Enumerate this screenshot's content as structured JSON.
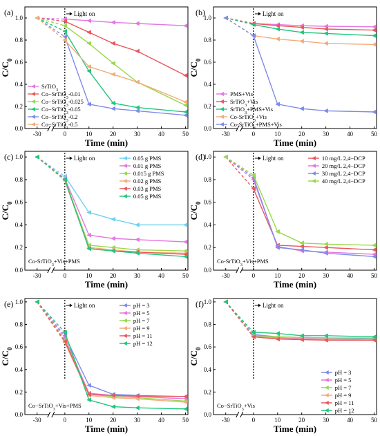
{
  "chart_data": [
    {
      "type": "line",
      "panel": "(a)",
      "xlabel": "Time (min)",
      "ylabel": "C/C0",
      "annotation": "Light on",
      "inset_label": "",
      "x": [
        -30,
        0,
        10,
        20,
        30,
        50
      ],
      "xticks": [
        "-30",
        "0",
        "10",
        "20",
        "30",
        "40",
        "50"
      ],
      "yticks": [
        "0.0",
        "0.2",
        "0.4",
        "0.6",
        "0.8",
        "1.0"
      ],
      "ylim": [
        0,
        1.1
      ],
      "legend_position": "bottom-left",
      "series": [
        {
          "name": "SrTiO3",
          "color": "#e377e0",
          "values": [
            1.0,
            0.99,
            0.975,
            0.96,
            0.95,
            0.93
          ]
        },
        {
          "name": "Co−SrTiO3-0.01",
          "color": "#e9585e",
          "values": [
            1.0,
            0.97,
            0.87,
            0.77,
            0.7,
            0.48
          ]
        },
        {
          "name": "Co−SrTiO3-0.025",
          "color": "#9ad84b",
          "values": [
            1.0,
            0.93,
            0.77,
            0.59,
            0.42,
            0.21
          ]
        },
        {
          "name": "Co−SrTiO3-0.05",
          "color": "#1ec77d",
          "values": [
            1.0,
            0.88,
            0.52,
            0.23,
            0.19,
            0.15
          ]
        },
        {
          "name": "Co−SrTiO3-0.2",
          "color": "#7f8bea",
          "values": [
            1.0,
            0.83,
            0.22,
            0.18,
            0.16,
            0.12
          ]
        },
        {
          "name": "Co−SrTiO3-0.5",
          "color": "#f2ac7c",
          "values": [
            1.0,
            0.8,
            0.56,
            0.49,
            0.42,
            0.24
          ]
        }
      ]
    },
    {
      "type": "line",
      "panel": "(b)",
      "xlabel": "Time (min)",
      "ylabel": "C/C0",
      "annotation": "Light on",
      "inset_label": "",
      "x": [
        -30,
        0,
        10,
        20,
        30,
        50
      ],
      "xticks": [
        "-30",
        "0",
        "10",
        "20",
        "30",
        "40",
        "50"
      ],
      "yticks": [
        "0.0",
        "0.2",
        "0.4",
        "0.6",
        "0.8",
        "1.0"
      ],
      "ylim": [
        0,
        1.1
      ],
      "legend_position": "bottom-left",
      "series": [
        {
          "name": "PMS+Vis",
          "color": "#e377e0",
          "values": [
            1.0,
            0.95,
            0.94,
            0.93,
            0.925,
            0.92
          ]
        },
        {
          "name": "SrTiO3+Vis",
          "color": "#e9585e",
          "values": [
            1.0,
            0.95,
            0.93,
            0.915,
            0.9,
            0.89
          ]
        },
        {
          "name": "SrTiO3+PMS+Vis",
          "color": "#1ec77d",
          "values": [
            1.0,
            0.94,
            0.9,
            0.87,
            0.86,
            0.84
          ]
        },
        {
          "name": "Co-SrTiO3+Vis",
          "color": "#f2ac7c",
          "values": [
            1.0,
            0.84,
            0.81,
            0.79,
            0.77,
            0.76
          ]
        },
        {
          "name": "Co-SrTiO3+PMS+Vis",
          "color": "#7f8bea",
          "values": [
            1.0,
            0.84,
            0.22,
            0.18,
            0.16,
            0.15
          ]
        }
      ]
    },
    {
      "type": "line",
      "panel": "(c)",
      "xlabel": "Time (min)",
      "ylabel": "C/C0",
      "annotation": "Light on",
      "inset_label": "Co-SrTiO3+Vis+PMS",
      "x": [
        -30,
        0,
        10,
        20,
        30,
        50
      ],
      "xticks": [
        "-30",
        "0",
        "10",
        "20",
        "30",
        "40",
        "50"
      ],
      "yticks": [
        "0.0",
        "0.2",
        "0.4",
        "0.6",
        "0.8",
        "1.0"
      ],
      "ylim": [
        0,
        1.05
      ],
      "legend_position": "top-right",
      "series": [
        {
          "name": "0.05 g PMS",
          "color": "#6ed0f0",
          "values": [
            1.0,
            0.83,
            0.51,
            0.45,
            0.4,
            0.4
          ]
        },
        {
          "name": "0.01 g PMS",
          "color": "#e377e0",
          "values": [
            1.0,
            0.81,
            0.31,
            0.28,
            0.27,
            0.25
          ]
        },
        {
          "name": "0.015 g PMS",
          "color": "#9ad84b",
          "values": [
            1.0,
            0.8,
            0.22,
            0.2,
            0.18,
            0.17
          ]
        },
        {
          "name": "0.02 g PMS",
          "color": "#f2ac7c",
          "values": [
            1.0,
            0.79,
            0.2,
            0.18,
            0.16,
            0.15
          ]
        },
        {
          "name": "0.03 g PMS",
          "color": "#e9585e",
          "values": [
            1.0,
            0.8,
            0.19,
            0.17,
            0.16,
            0.14
          ]
        },
        {
          "name": "0.05 g PMS",
          "color": "#1ec77d",
          "values": [
            1.0,
            0.8,
            0.19,
            0.17,
            0.15,
            0.12
          ]
        }
      ]
    },
    {
      "type": "line",
      "panel": "(d)",
      "xlabel": "Time (min)",
      "ylabel": "C/C0",
      "annotation": "Light on",
      "inset_label": "Co-SrTiO3+Vis+PMS",
      "x": [
        -30,
        0,
        10,
        20,
        30,
        50
      ],
      "xticks": [
        "-30",
        "0",
        "10",
        "20",
        "30",
        "40",
        "50"
      ],
      "yticks": [
        "0.0",
        "0.2",
        "0.4",
        "0.6",
        "0.8",
        "1.0"
      ],
      "ylim": [
        0,
        1.05
      ],
      "legend_position": "top-right",
      "series": [
        {
          "name": "10 mg/L 2,4−DCP",
          "color": "#e9585e",
          "values": [
            1.0,
            0.72,
            0.22,
            0.21,
            0.2,
            0.18
          ]
        },
        {
          "name": "20 mg/L 2,4−DCP",
          "color": "#e377e0",
          "values": [
            1.0,
            0.8,
            0.21,
            0.17,
            0.16,
            0.14
          ]
        },
        {
          "name": "30 mg/L 2,4−DCP",
          "color": "#7f8bea",
          "values": [
            1.0,
            0.82,
            0.2,
            0.18,
            0.15,
            0.12
          ]
        },
        {
          "name": "40 mg/L 2,4−DCP",
          "color": "#9ad84b",
          "values": [
            1.0,
            0.84,
            0.34,
            0.24,
            0.23,
            0.22
          ]
        }
      ]
    },
    {
      "type": "line",
      "panel": "(e)",
      "xlabel": "Time (min)",
      "ylabel": "C/C0",
      "annotation": "Light on",
      "inset_label": "Co−SrTiO3+Vis+PMS",
      "x": [
        -30,
        0,
        10,
        20,
        30,
        50
      ],
      "xticks": [
        "-30",
        "0",
        "10",
        "20",
        "30",
        "40",
        "50"
      ],
      "yticks": [
        "0.0",
        "0.2",
        "0.4",
        "0.6",
        "0.8",
        "1.0"
      ],
      "ylim": [
        0,
        1.03
      ],
      "legend_position": "top-right",
      "series": [
        {
          "name": "pH = 3",
          "color": "#7f8bea",
          "values": [
            1.0,
            0.7,
            0.26,
            0.18,
            0.17,
            0.16
          ]
        },
        {
          "name": "pH = 5",
          "color": "#e377e0",
          "values": [
            1.0,
            0.68,
            0.19,
            0.17,
            0.16,
            0.14
          ]
        },
        {
          "name": "pH = 7",
          "color": "#9ad84b",
          "values": [
            1.0,
            0.66,
            0.18,
            0.16,
            0.15,
            0.12
          ]
        },
        {
          "name": "pH = 9",
          "color": "#f2ac7c",
          "values": [
            1.0,
            0.64,
            0.17,
            0.15,
            0.14,
            0.11
          ]
        },
        {
          "name": "pH = 11",
          "color": "#e9585e",
          "values": [
            1.0,
            0.65,
            0.18,
            0.17,
            0.165,
            0.16
          ]
        },
        {
          "name": "pH = 12",
          "color": "#1ec77d",
          "values": [
            1.0,
            0.73,
            0.13,
            0.07,
            0.06,
            0.05
          ]
        }
      ]
    },
    {
      "type": "line",
      "panel": "(f)",
      "xlabel": "Time (min)",
      "ylabel": "C/C0",
      "annotation": "Light on",
      "inset_label": "Co−SrTiO3+Vis",
      "x": [
        -30,
        0,
        10,
        20,
        30,
        50
      ],
      "xticks": [
        "-30",
        "0",
        "10",
        "20",
        "30",
        "40",
        "50"
      ],
      "yticks": [
        "0.0",
        "0.2",
        "0.4",
        "0.6",
        "0.8",
        "1.0"
      ],
      "ylim": [
        0,
        1.03
      ],
      "legend_position": "bottom-right",
      "series": [
        {
          "name": "pH = 3",
          "color": "#7f8bea",
          "values": [
            1.0,
            0.71,
            0.69,
            0.685,
            0.68,
            0.67
          ]
        },
        {
          "name": "pH = 5",
          "color": "#e377e0",
          "values": [
            1.0,
            0.7,
            0.68,
            0.675,
            0.67,
            0.66
          ]
        },
        {
          "name": "pH = 7",
          "color": "#9ad84b",
          "values": [
            1.0,
            0.7,
            0.69,
            0.685,
            0.68,
            0.68
          ]
        },
        {
          "name": "pH = 9",
          "color": "#f2ac7c",
          "values": [
            1.0,
            0.69,
            0.675,
            0.67,
            0.665,
            0.66
          ]
        },
        {
          "name": "pH = 11",
          "color": "#e9585e",
          "values": [
            1.0,
            0.69,
            0.67,
            0.665,
            0.66,
            0.66
          ]
        },
        {
          "name": "pH = 12",
          "color": "#1ec77d",
          "values": [
            1.0,
            0.73,
            0.72,
            0.7,
            0.7,
            0.69
          ]
        }
      ]
    }
  ]
}
